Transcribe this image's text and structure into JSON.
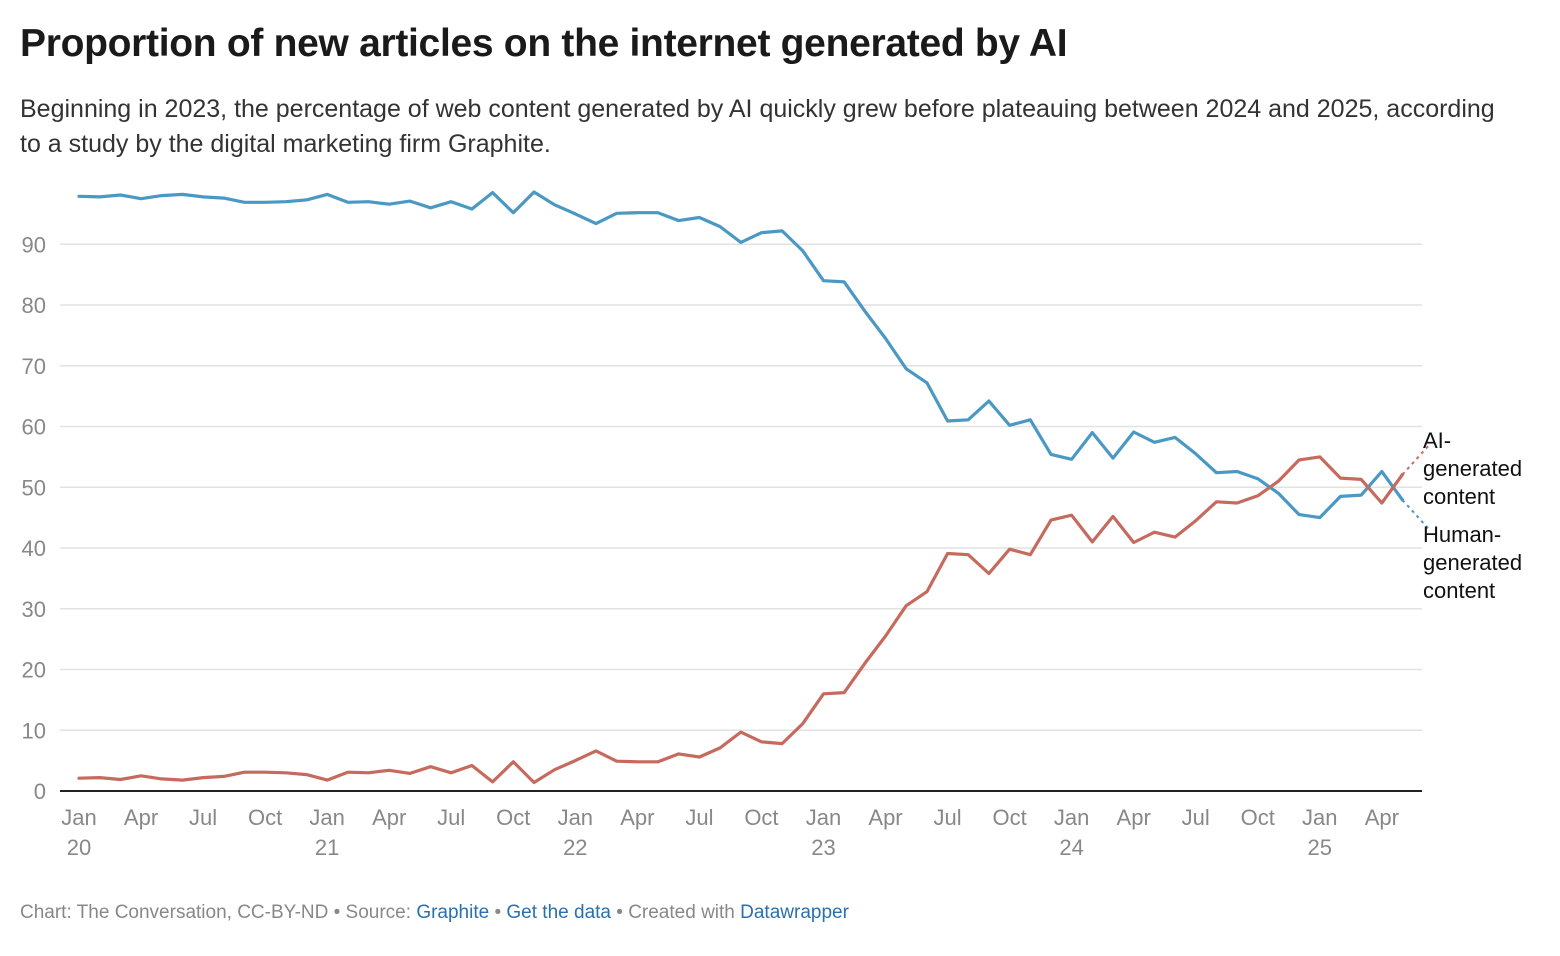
{
  "title": "Proportion of new articles on the internet generated by AI",
  "subtitle": "Beginning in 2023, the percentage of web content generated by AI quickly grew before plateauing between 2024 and 2025, according to a study by the digital marketing firm Graphite.",
  "footer": {
    "prefix": "Chart: The Conversation, CC-BY-ND • Source: ",
    "source_link": "Graphite",
    "sep1": " • ",
    "data_link": "Get the data",
    "sep2": " • Created with ",
    "tool_link": "Datawrapper"
  },
  "colors": {
    "human": "#4a98c4",
    "ai": "#c76a5e",
    "grid": "#e2e2e2",
    "axis": "#222222",
    "tick": "#888888"
  },
  "chart_data": {
    "type": "line",
    "title": "Proportion of new articles on the internet generated by AI",
    "xlabel": "",
    "ylabel": "",
    "ylim": [
      0,
      100
    ],
    "yticks": [
      0,
      10,
      20,
      30,
      40,
      50,
      60,
      70,
      80,
      90
    ],
    "grid": true,
    "xticks": [
      {
        "month": 0,
        "label": "Jan",
        "sub": "20"
      },
      {
        "month": 3,
        "label": "Apr",
        "sub": ""
      },
      {
        "month": 6,
        "label": "Jul",
        "sub": ""
      },
      {
        "month": 9,
        "label": "Oct",
        "sub": ""
      },
      {
        "month": 12,
        "label": "Jan",
        "sub": "21"
      },
      {
        "month": 15,
        "label": "Apr",
        "sub": ""
      },
      {
        "month": 18,
        "label": "Jul",
        "sub": ""
      },
      {
        "month": 21,
        "label": "Oct",
        "sub": ""
      },
      {
        "month": 24,
        "label": "Jan",
        "sub": "22"
      },
      {
        "month": 27,
        "label": "Apr",
        "sub": ""
      },
      {
        "month": 30,
        "label": "Jul",
        "sub": ""
      },
      {
        "month": 33,
        "label": "Oct",
        "sub": ""
      },
      {
        "month": 36,
        "label": "Jan",
        "sub": "23"
      },
      {
        "month": 39,
        "label": "Apr",
        "sub": ""
      },
      {
        "month": 42,
        "label": "Jul",
        "sub": ""
      },
      {
        "month": 45,
        "label": "Oct",
        "sub": ""
      },
      {
        "month": 48,
        "label": "Jan",
        "sub": "24"
      },
      {
        "month": 51,
        "label": "Apr",
        "sub": ""
      },
      {
        "month": 54,
        "label": "Jul",
        "sub": ""
      },
      {
        "month": 57,
        "label": "Oct",
        "sub": ""
      },
      {
        "month": 60,
        "label": "Jan",
        "sub": "25"
      },
      {
        "month": 63,
        "label": "Apr",
        "sub": ""
      }
    ],
    "x_note": "Months since January 2020 (0 = Jan 2020); last solid point is Jun 2025, dotted segment extends to a projected value.",
    "series": [
      {
        "name": "Human-generated content",
        "label_lines": [
          "Human-",
          "generated",
          "content"
        ],
        "color": "#4a98c4",
        "values": [
          97.9,
          97.8,
          98.1,
          97.5,
          98.0,
          98.2,
          97.8,
          97.6,
          96.9,
          96.9,
          97.0,
          97.3,
          98.2,
          96.9,
          97.0,
          96.6,
          97.1,
          96.0,
          97.0,
          95.8,
          98.5,
          95.2,
          98.6,
          96.5,
          95.0,
          93.4,
          95.1,
          95.2,
          95.2,
          93.9,
          94.4,
          92.9,
          90.3,
          91.9,
          92.2,
          88.9,
          84.0,
          83.8,
          79.0,
          74.5,
          69.5,
          67.2,
          60.9,
          61.1,
          64.2,
          60.2,
          61.1,
          55.4,
          54.6,
          59.0,
          54.8,
          59.1,
          57.4,
          58.2,
          55.5,
          52.4,
          52.6,
          51.4,
          49.0,
          45.5,
          45.0,
          48.5,
          48.7,
          52.6,
          47.9
        ],
        "projection": 43.0
      },
      {
        "name": "AI-generated content",
        "label_lines": [
          "AI-",
          "generated",
          "content"
        ],
        "color": "#c76a5e",
        "values": [
          2.1,
          2.2,
          1.9,
          2.5,
          2.0,
          1.8,
          2.2,
          2.4,
          3.1,
          3.1,
          3.0,
          2.7,
          1.8,
          3.1,
          3.0,
          3.4,
          2.9,
          4.0,
          3.0,
          4.2,
          1.5,
          4.8,
          1.4,
          3.5,
          5.0,
          6.6,
          4.9,
          4.8,
          4.8,
          6.1,
          5.6,
          7.1,
          9.7,
          8.1,
          7.8,
          11.1,
          16.0,
          16.2,
          21.0,
          25.5,
          30.5,
          32.8,
          39.1,
          38.9,
          35.8,
          39.8,
          38.9,
          44.6,
          45.4,
          41.0,
          45.2,
          40.9,
          42.6,
          41.8,
          44.5,
          47.6,
          47.4,
          48.6,
          51.0,
          54.5,
          55.0,
          51.5,
          51.3,
          47.4,
          52.1
        ],
        "projection": 57.0
      }
    ]
  }
}
